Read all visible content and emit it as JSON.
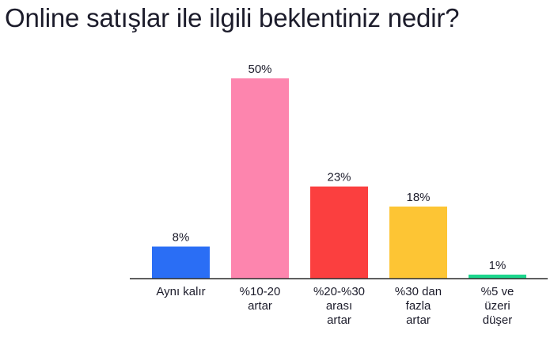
{
  "chart_data": {
    "type": "bar",
    "title": "Online satışlar ile ilgili beklentiniz nedir?",
    "categories": [
      [
        "Aynı kalır"
      ],
      [
        "%10-20",
        "artar"
      ],
      [
        "%20-%30",
        "arası",
        "artar"
      ],
      [
        "%30 dan",
        "fazla",
        "artar"
      ],
      [
        "%5 ve",
        "üzeri",
        "düşer"
      ]
    ],
    "values": [
      8,
      50,
      23,
      18,
      1
    ],
    "value_labels": [
      "8%",
      "50%",
      "23%",
      "18%",
      "1%"
    ],
    "colors": [
      "#2a6ef5",
      "#fd85ae",
      "#fb3f3f",
      "#fdc534",
      "#1dd68d"
    ],
    "ylim": [
      0,
      50
    ],
    "grid": false,
    "legend": "none"
  }
}
